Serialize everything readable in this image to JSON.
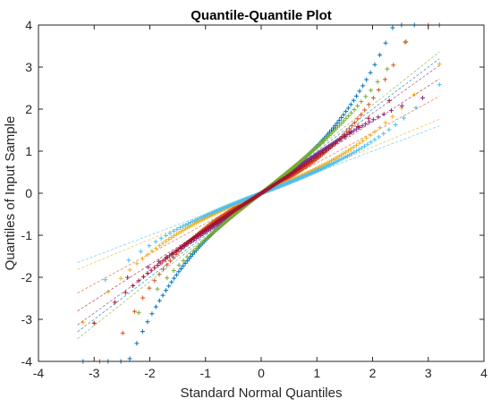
{
  "chart_data": {
    "type": "scatter",
    "title": "Quantile-Quantile Plot",
    "xlabel": "Standard Normal Quantiles",
    "ylabel": "Quantiles of Input Sample",
    "xlim": [
      -4,
      4
    ],
    "ylim": [
      -4,
      4
    ],
    "xticks": [
      "-4",
      "-3",
      "-2",
      "-1",
      "0",
      "1",
      "2",
      "3",
      "4"
    ],
    "yticks": [
      "-4",
      "-3",
      "-2",
      "-1",
      "0",
      "1",
      "2",
      "3",
      "4"
    ],
    "grid": false,
    "legend": "none",
    "marker": "+",
    "reference_lines": "dashed",
    "colors": [
      "#0072BD",
      "#D95319",
      "#EDB120",
      "#7E2F8E",
      "#77AC30",
      "#4DBEEE",
      "#A2142F"
    ],
    "series": [
      {
        "slope": 1.0,
        "curvature": 0.12,
        "x_min": -3.2,
        "x_max": 3.2
      },
      {
        "slope": 0.72,
        "curvature": 0.1,
        "x_min": -2.9,
        "x_max": 3.0
      },
      {
        "slope": 0.55,
        "curvature": 0.04,
        "x_min": -3.2,
        "x_max": 3.2
      },
      {
        "slope": 0.95,
        "curvature": -0.02,
        "x_min": -2.4,
        "x_max": 2.9
      },
      {
        "slope": 1.05,
        "curvature": 0.05,
        "x_min": -2.2,
        "x_max": 2.6
      },
      {
        "slope": 0.5,
        "curvature": 0.03,
        "x_min": -2.8,
        "x_max": 3.2
      },
      {
        "slope": 0.85,
        "curvature": 0.02,
        "x_min": -3.0,
        "x_max": 2.3
      }
    ]
  }
}
